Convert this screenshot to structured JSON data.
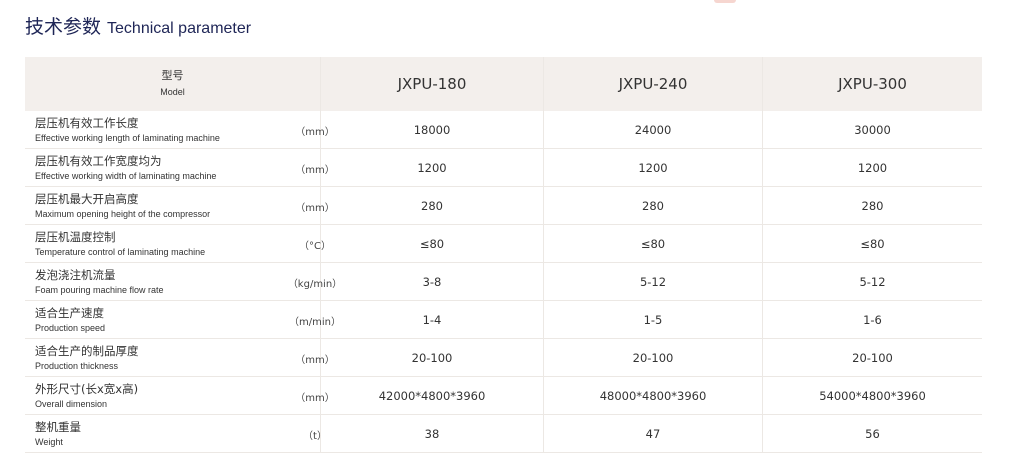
{
  "title": {
    "cn": "技术参数",
    "en": "Technical parameter"
  },
  "table": {
    "header": {
      "cn": "型号",
      "en": "Model",
      "models": [
        "JXPU-180",
        "JXPU-240",
        "JXPU-300"
      ]
    },
    "rows": [
      {
        "cn": "层压机有效工作长度",
        "en": "Effective working length of laminating machine",
        "unit": "（mm）",
        "values": [
          "18000",
          "24000",
          "30000"
        ]
      },
      {
        "cn": "层压机有效工作宽度均为",
        "en": "Effective working width of laminating machine",
        "unit": "（mm）",
        "values": [
          "1200",
          "1200",
          "1200"
        ]
      },
      {
        "cn": "层压机最大开启高度",
        "en": "Maximum opening height of the compressor",
        "unit": "（mm）",
        "values": [
          "280",
          "280",
          "280"
        ]
      },
      {
        "cn": "层压机温度控制",
        "en": "Temperature control of laminating machine",
        "unit": "（°C）",
        "values": [
          "≤80",
          "≤80",
          "≤80"
        ]
      },
      {
        "cn": "发泡浇注机流量",
        "en": "Foam pouring machine flow rate",
        "unit": "（kg/min）",
        "values": [
          "3-8",
          "5-12",
          "5-12"
        ]
      },
      {
        "cn": "适合生产速度",
        "en": "Production speed",
        "unit": "（m/min）",
        "values": [
          "1-4",
          "1-5",
          "1-6"
        ]
      },
      {
        "cn": "适合生产的制品厚度",
        "en": "Production thickness",
        "unit": "（mm）",
        "values": [
          "20-100",
          "20-100",
          "20-100"
        ]
      },
      {
        "cn": "外形尺寸(长x宽x高)",
        "en": "Overall dimension",
        "unit": "（mm）",
        "values": [
          "42000*4800*3960",
          "48000*4800*3960",
          "54000*4800*3960"
        ]
      },
      {
        "cn": "整机重量",
        "en": "Weight",
        "unit": "（t）",
        "values": [
          "38",
          "47",
          "56"
        ]
      }
    ]
  }
}
